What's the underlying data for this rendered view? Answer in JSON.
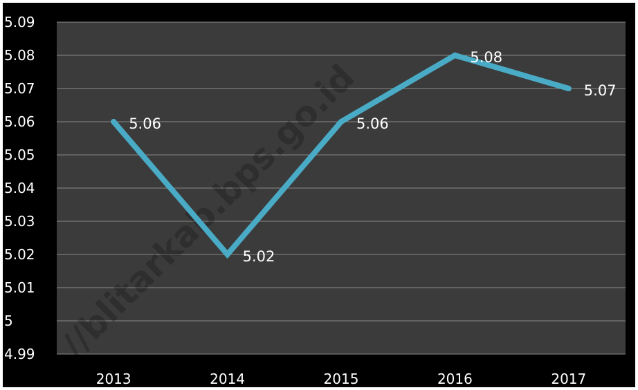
{
  "watermark": "//blitarkab.bps.go.id",
  "chart_data": {
    "type": "line",
    "title": "",
    "xlabel": "",
    "ylabel": "",
    "categories": [
      "2013",
      "2014",
      "2015",
      "2016",
      "2017"
    ],
    "series": [
      {
        "values": [
          5.06,
          5.02,
          5.06,
          5.08,
          5.07
        ]
      }
    ],
    "data_labels": [
      "5.06",
      "5.02",
      "5.06",
      "5.08",
      "5.07"
    ],
    "ylim": [
      4.99,
      5.09
    ],
    "y_ticks": [
      "4.99",
      "5",
      "5.01",
      "5.02",
      "5.03",
      "5.04",
      "5.05",
      "5.06",
      "5.07",
      "5.08",
      "5.09"
    ],
    "grid": true,
    "legend": "none",
    "colors": {
      "background": "#3b3b3b",
      "outer": "#000000",
      "line": "#4aabc6",
      "grid": "#8a8a8a",
      "text": "#ffffff"
    }
  }
}
